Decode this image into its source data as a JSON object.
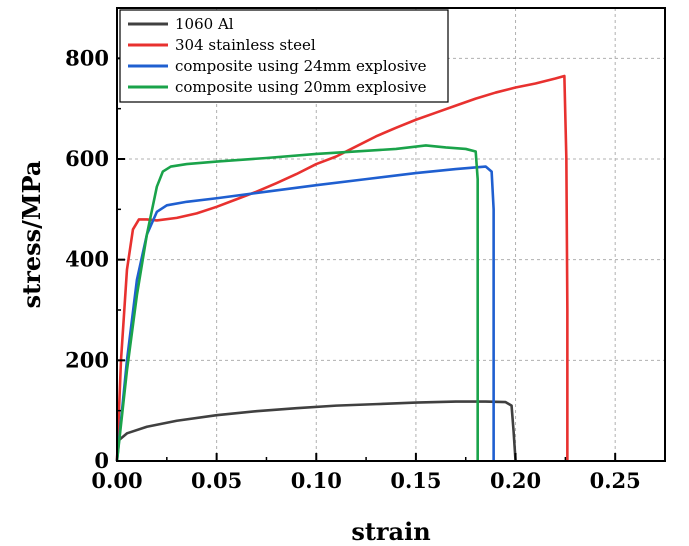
{
  "chart_data": {
    "type": "line",
    "xlabel": "strain",
    "ylabel": "stress/MPa",
    "xlim": [
      0,
      0.275
    ],
    "ylim": [
      0,
      900
    ],
    "x_ticks": [
      0.0,
      0.05,
      0.1,
      0.15,
      0.2,
      0.25
    ],
    "x_tick_labels": [
      "0.00",
      "0.05",
      "0.10",
      "0.15",
      "0.20",
      "0.25"
    ],
    "y_ticks": [
      0,
      200,
      400,
      600,
      800
    ],
    "y_tick_labels": [
      "0",
      "200",
      "400",
      "600",
      "800"
    ],
    "grid": true,
    "legend_position": "top-left",
    "series": [
      {
        "name": "1060 Al",
        "color": "#404040",
        "points": [
          [
            0,
            0
          ],
          [
            0.0005,
            40
          ],
          [
            0.005,
            55
          ],
          [
            0.015,
            68
          ],
          [
            0.03,
            80
          ],
          [
            0.05,
            91
          ],
          [
            0.07,
            99
          ],
          [
            0.09,
            105
          ],
          [
            0.11,
            110
          ],
          [
            0.13,
            113
          ],
          [
            0.15,
            116
          ],
          [
            0.17,
            118
          ],
          [
            0.185,
            118
          ],
          [
            0.195,
            117
          ],
          [
            0.198,
            110
          ],
          [
            0.199,
            60
          ],
          [
            0.2,
            0
          ]
        ]
      },
      {
        "name": "304 stainless steel",
        "color": "#e8312f",
        "points": [
          [
            0,
            0
          ],
          [
            0.002,
            200
          ],
          [
            0.005,
            380
          ],
          [
            0.008,
            460
          ],
          [
            0.011,
            480
          ],
          [
            0.015,
            480
          ],
          [
            0.02,
            478
          ],
          [
            0.03,
            483
          ],
          [
            0.04,
            492
          ],
          [
            0.05,
            505
          ],
          [
            0.06,
            520
          ],
          [
            0.07,
            535
          ],
          [
            0.08,
            552
          ],
          [
            0.09,
            570
          ],
          [
            0.1,
            590
          ],
          [
            0.11,
            605
          ],
          [
            0.12,
            625
          ],
          [
            0.13,
            645
          ],
          [
            0.14,
            662
          ],
          [
            0.15,
            678
          ],
          [
            0.16,
            692
          ],
          [
            0.17,
            706
          ],
          [
            0.18,
            720
          ],
          [
            0.19,
            732
          ],
          [
            0.2,
            742
          ],
          [
            0.21,
            750
          ],
          [
            0.22,
            760
          ],
          [
            0.2245,
            765
          ],
          [
            0.2255,
            600
          ],
          [
            0.226,
            300
          ],
          [
            0.226,
            0
          ]
        ]
      },
      {
        "name": "composite using 24mm explosive",
        "color": "#1f5fd0",
        "points": [
          [
            0,
            0
          ],
          [
            0.005,
            200
          ],
          [
            0.01,
            360
          ],
          [
            0.015,
            450
          ],
          [
            0.02,
            495
          ],
          [
            0.025,
            508
          ],
          [
            0.035,
            515
          ],
          [
            0.05,
            522
          ],
          [
            0.075,
            535
          ],
          [
            0.1,
            548
          ],
          [
            0.125,
            560
          ],
          [
            0.15,
            572
          ],
          [
            0.17,
            580
          ],
          [
            0.185,
            585
          ],
          [
            0.188,
            575
          ],
          [
            0.189,
            500
          ],
          [
            0.189,
            0
          ]
        ]
      },
      {
        "name": "composite using 20mm explosive",
        "color": "#1aa34a",
        "points": [
          [
            0,
            0
          ],
          [
            0.005,
            180
          ],
          [
            0.01,
            330
          ],
          [
            0.015,
            450
          ],
          [
            0.02,
            545
          ],
          [
            0.023,
            575
          ],
          [
            0.027,
            585
          ],
          [
            0.035,
            590
          ],
          [
            0.05,
            595
          ],
          [
            0.075,
            602
          ],
          [
            0.1,
            610
          ],
          [
            0.12,
            615
          ],
          [
            0.14,
            620
          ],
          [
            0.155,
            627
          ],
          [
            0.165,
            623
          ],
          [
            0.175,
            620
          ],
          [
            0.18,
            615
          ],
          [
            0.181,
            560
          ],
          [
            0.181,
            0
          ]
        ]
      }
    ]
  }
}
